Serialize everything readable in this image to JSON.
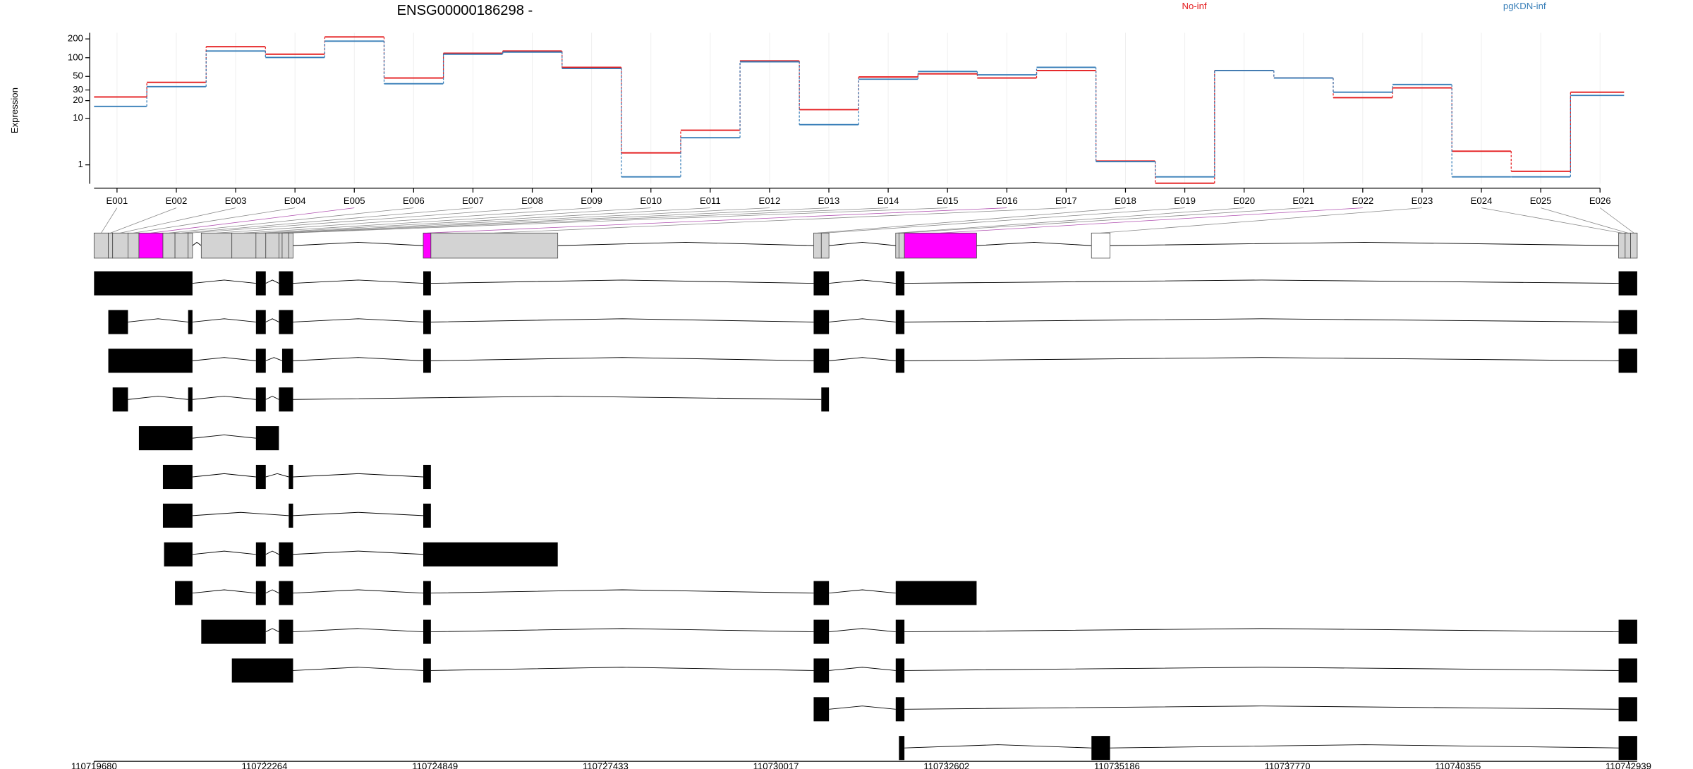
{
  "chart_data": [
    {
      "type": "step",
      "title": "ENSG00000186298 -",
      "y_label": "Expression",
      "categories": [
        "E001",
        "E002",
        "E003",
        "E004",
        "E005",
        "E006",
        "E007",
        "E008",
        "E009",
        "E010",
        "E011",
        "E012",
        "E013",
        "E014",
        "E015",
        "E016",
        "E017",
        "E018",
        "E019",
        "E020",
        "E021",
        "E022",
        "E023",
        "E024",
        "E025",
        "E026"
      ],
      "series": [
        {
          "name": "No-inf",
          "color": "#e41a1c",
          "values": [
            23,
            40,
            150,
            114,
            215,
            47,
            118,
            128,
            70,
            2.1,
            6.1,
            89,
            14.1,
            49,
            55,
            47,
            62,
            1.3,
            0.02,
            62,
            47,
            22.4,
            32.5,
            2.3,
            0.58,
            27.6
          ]
        },
        {
          "name": "pgKDN-inf",
          "color": "#377eb8",
          "values": [
            16,
            34,
            128,
            101,
            184,
            38,
            114,
            123,
            67,
            0.29,
            4.4,
            86,
            7.7,
            45,
            60,
            53,
            70,
            1.25,
            0.29,
            62,
            47,
            27.6,
            36.8,
            0.29,
            0.29,
            24.4
          ]
        }
      ],
      "log_scale": true,
      "ylim": [
        0,
        250
      ],
      "yticks": [
        1,
        10,
        20,
        30,
        50,
        100,
        200
      ],
      "grid": true
    },
    {
      "type": "gene-model",
      "xlim": [
        110719680,
        110743072
      ],
      "xticks": [
        110719680,
        110722264,
        110724849,
        110727433,
        110730017,
        110732602,
        110735186,
        110737770,
        110740355,
        110742939
      ],
      "bins": [
        [
          110719680,
          110719896
        ],
        [
          110719896,
          110719962
        ],
        [
          110719962,
          110720194
        ],
        [
          110720194,
          110720360
        ],
        [
          110720360,
          110720724
        ],
        [
          110720724,
          110720907
        ],
        [
          110720907,
          110721106
        ],
        [
          110721106,
          110721172
        ],
        [
          110721305,
          110721769
        ],
        [
          110721769,
          110722134
        ],
        [
          110722134,
          110722283
        ],
        [
          110722283,
          110722482
        ],
        [
          110722482,
          110722531
        ],
        [
          110722531,
          110722631
        ],
        [
          110722631,
          110722697
        ],
        [
          110724670,
          110724786
        ],
        [
          110724786,
          110726709
        ],
        [
          110730588,
          110730704
        ],
        [
          110730704,
          110730820
        ],
        [
          110731832,
          110731881
        ],
        [
          110731881,
          110731964
        ],
        [
          110731964,
          110733058
        ],
        [
          110734799,
          110735081
        ],
        [
          110742790,
          110742889
        ],
        [
          110742889,
          110742972
        ],
        [
          110742972,
          110743072
        ]
      ],
      "bin_colors": [
        "#d3d3d3",
        "#d3d3d3",
        "#d3d3d3",
        "#d3d3d3",
        "#ff00ff",
        "#d3d3d3",
        "#d3d3d3",
        "#d3d3d3",
        "#d3d3d3",
        "#d3d3d3",
        "#d3d3d3",
        "#d3d3d3",
        "#d3d3d3",
        "#d3d3d3",
        "#d3d3d3",
        "#ff00ff",
        "#d3d3d3",
        "#d3d3d3",
        "#d3d3d3",
        "#d3d3d3",
        "#d3d3d3",
        "#ff00ff",
        "#ffffff",
        "#d3d3d3",
        "#d3d3d3",
        "#d3d3d3"
      ],
      "transcripts": [
        [
          [
            110719680,
            110721172
          ],
          [
            110722134,
            110722283
          ],
          [
            110722482,
            110722697
          ],
          [
            110724670,
            110724786
          ],
          [
            110730588,
            110730820
          ],
          [
            110731832,
            110731964
          ],
          [
            110742790,
            110743072
          ]
        ],
        [
          [
            110719896,
            110720194
          ],
          [
            110721106,
            110721172
          ],
          [
            110722134,
            110722283
          ],
          [
            110722482,
            110722697
          ],
          [
            110724670,
            110724786
          ],
          [
            110730588,
            110730820
          ],
          [
            110731832,
            110731964
          ],
          [
            110742790,
            110743072
          ]
        ],
        [
          [
            110719896,
            110721172
          ],
          [
            110722134,
            110722283
          ],
          [
            110722531,
            110722697
          ],
          [
            110724670,
            110724786
          ],
          [
            110730588,
            110730820
          ],
          [
            110731832,
            110731964
          ],
          [
            110742790,
            110743072
          ]
        ],
        [
          [
            110719962,
            110720194
          ],
          [
            110721106,
            110721172
          ],
          [
            110722134,
            110722283
          ],
          [
            110722482,
            110722697
          ],
          [
            110730704,
            110730820
          ]
        ],
        [
          [
            110720360,
            110721172
          ],
          [
            110722134,
            110722482
          ]
        ],
        [
          [
            110720724,
            110721172
          ],
          [
            110722134,
            110722283
          ],
          [
            110722631,
            110722697
          ],
          [
            110724670,
            110724786
          ]
        ],
        [
          [
            110720724,
            110721172
          ],
          [
            110722631,
            110722697
          ],
          [
            110724670,
            110724786
          ]
        ],
        [
          [
            110720741,
            110721172
          ],
          [
            110722134,
            110722283
          ],
          [
            110722482,
            110722697
          ],
          [
            110724670,
            110726709
          ]
        ],
        [
          [
            110720907,
            110721172
          ],
          [
            110722134,
            110722283
          ],
          [
            110722482,
            110722697
          ],
          [
            110724670,
            110724786
          ],
          [
            110730588,
            110730820
          ],
          [
            110731832,
            110733058
          ]
        ],
        [
          [
            110721305,
            110722283
          ],
          [
            110722482,
            110722697
          ],
          [
            110724670,
            110724786
          ],
          [
            110730588,
            110730820
          ],
          [
            110731832,
            110731964
          ],
          [
            110742790,
            110743072
          ]
        ],
        [
          [
            110721769,
            110722697
          ],
          [
            110724670,
            110724786
          ],
          [
            110730588,
            110730820
          ],
          [
            110731832,
            110731964
          ],
          [
            110742790,
            110743072
          ]
        ],
        [
          [
            110730588,
            110730820
          ],
          [
            110731832,
            110731964
          ],
          [
            110742790,
            110743072
          ]
        ],
        [
          [
            110731881,
            110731964
          ],
          [
            110734799,
            110735081
          ],
          [
            110742790,
            110743072
          ]
        ]
      ]
    }
  ]
}
